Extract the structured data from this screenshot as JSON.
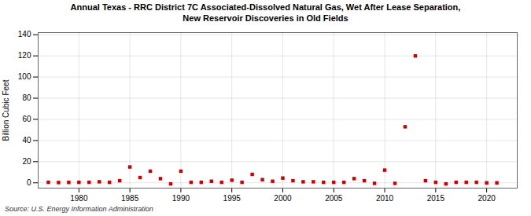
{
  "chart_data": {
    "type": "scatter",
    "title": "Annual Texas - RRC District 7C Associated-Dissolved Natural Gas, Wet After Lease Separation,\nNew Reservoir Discoveries in Old Fields",
    "ylabel": "Billion Cubic Feet",
    "source": "Source: U.S. Energy Information Administration",
    "x": [
      1977,
      1978,
      1979,
      1980,
      1981,
      1982,
      1983,
      1984,
      1985,
      1986,
      1987,
      1988,
      1989,
      1990,
      1991,
      1992,
      1993,
      1994,
      1995,
      1996,
      1997,
      1998,
      1999,
      2000,
      2001,
      2002,
      2003,
      2004,
      2005,
      2006,
      2007,
      2008,
      2009,
      2010,
      2011,
      2012,
      2013,
      2014,
      2015,
      2016,
      2017,
      2018,
      2019,
      2020,
      2021
    ],
    "values": [
      0.5,
      0.3,
      0.4,
      0.5,
      0.5,
      1.0,
      0.5,
      2.0,
      15.0,
      5.0,
      11.0,
      4.0,
      -1.0,
      11.0,
      0.5,
      0.5,
      1.5,
      0.5,
      2.5,
      0.5,
      8.0,
      3.0,
      1.5,
      4.5,
      2.0,
      1.0,
      1.0,
      0.5,
      0.5,
      0.5,
      4.0,
      2.0,
      -0.5,
      12.0,
      -0.5,
      53.0,
      120.0,
      2.0,
      0.5,
      -1.0,
      0.5,
      0.5,
      0.5,
      0.0,
      0.0
    ],
    "color": "#cc0000",
    "marker": "square",
    "xlim": [
      1976,
      2023
    ],
    "ylim": [
      -5,
      142
    ],
    "xticks": [
      1980,
      1985,
      1990,
      1995,
      2000,
      2005,
      2010,
      2015,
      2020
    ],
    "yticks": [
      0,
      20,
      40,
      60,
      80,
      100,
      120,
      140
    ],
    "grid": true
  }
}
